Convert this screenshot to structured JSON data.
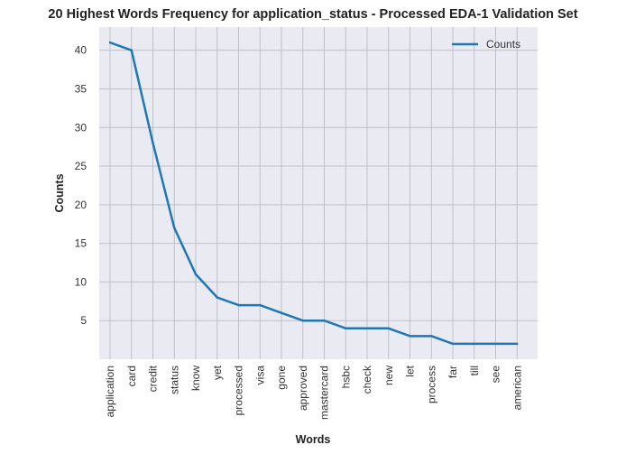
{
  "chart_data": {
    "type": "line",
    "title": "20 Highest Words Frequency for application_status - Processed EDA-1 Validation Set",
    "xlabel": "Words",
    "ylabel": "Counts",
    "categories": [
      "application",
      "card",
      "credit",
      "status",
      "know",
      "yet",
      "processed",
      "visa",
      "gone",
      "approved",
      "mastercard",
      "hsbc",
      "check",
      "new",
      "let",
      "process",
      "far",
      "till",
      "see",
      "american"
    ],
    "series": [
      {
        "name": "Counts",
        "color": "#1f77b4",
        "values": [
          41,
          40,
          28,
          17,
          11,
          8,
          7,
          7,
          6,
          5,
          5,
          4,
          4,
          4,
          3,
          3,
          2,
          2,
          2,
          2
        ]
      }
    ],
    "ylim": [
      0,
      43
    ],
    "yticks": [
      5,
      10,
      15,
      20,
      25,
      30,
      35,
      40
    ],
    "grid": true,
    "legend_position": "top-right",
    "colors": {
      "plot_background": "#eaeaf2",
      "grid": "#c0c0c8",
      "line": "#1f77b4"
    }
  }
}
